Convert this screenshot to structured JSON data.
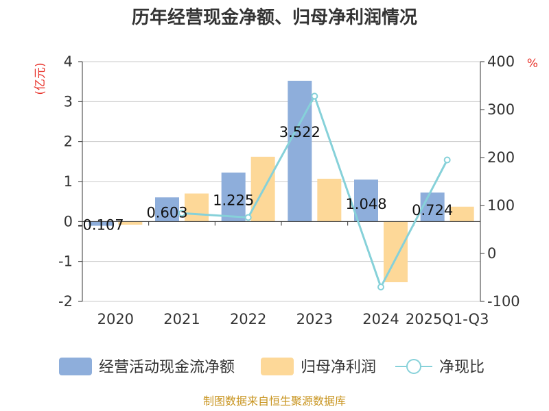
{
  "chart_data": {
    "type": "bar+line",
    "title": "历年经营现金净额、归母净利润情况",
    "categories": [
      "2020",
      "2021",
      "2022",
      "2023",
      "2024",
      "2025Q1-Q3"
    ],
    "series": [
      {
        "name": "经营活动现金流净额",
        "type": "bar",
        "axis": "left",
        "color": "#8eaedb",
        "values": [
          -0.107,
          0.603,
          1.225,
          3.522,
          1.048,
          0.724
        ]
      },
      {
        "name": "归母净利润",
        "type": "bar",
        "axis": "left",
        "color": "#fdd898",
        "values": [
          -0.08,
          0.7,
          1.62,
          1.07,
          -1.52,
          0.37
        ]
      },
      {
        "name": "净现比",
        "type": "line",
        "axis": "right",
        "color": "#86d1d9",
        "values": [
          null,
          84,
          75,
          328,
          -70,
          195
        ]
      }
    ],
    "data_labels": [
      "-0.107",
      "0.603",
      "1.225",
      "3.522",
      "1.048",
      "0.724"
    ],
    "left_axis": {
      "label": "(亿元)",
      "ylim": [
        -2,
        4
      ],
      "ticks": [
        "4",
        "3",
        "2",
        "1",
        "0",
        "-1",
        "-2"
      ]
    },
    "right_axis": {
      "label": "%",
      "ylim": [
        -100,
        400
      ],
      "ticks": [
        "400",
        "300",
        "200",
        "100",
        "0",
        "-100"
      ]
    },
    "legend_position": "bottom",
    "source": "制图数据来自恒生聚源数据库"
  }
}
